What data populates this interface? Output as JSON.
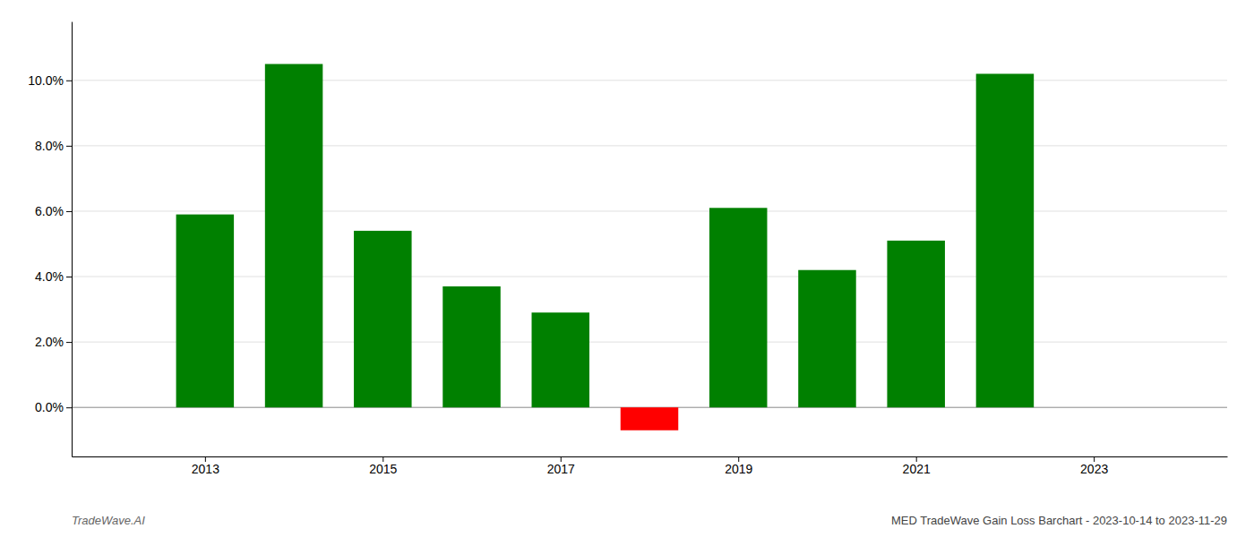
{
  "chart_data": {
    "type": "bar",
    "title": "MED TradeWave Gain Loss Barchart - 2023-10-14 to 2023-11-29",
    "annotations": [
      "TradeWave.AI"
    ],
    "x": [
      2013,
      2014,
      2015,
      2016,
      2017,
      2018,
      2019,
      2020,
      2021,
      2022
    ],
    "values": [
      0.059,
      0.105,
      0.054,
      0.037,
      0.029,
      -0.007,
      0.061,
      0.042,
      0.051,
      0.102
    ],
    "colors": [
      "#008000",
      "#008000",
      "#008000",
      "#008000",
      "#008000",
      "#ff0000",
      "#008000",
      "#008000",
      "#008000",
      "#008000"
    ],
    "xlim": [
      2011.5,
      2024.5
    ],
    "xticks": [
      2013,
      2015,
      2017,
      2019,
      2021,
      2023
    ],
    "ylim": [
      -0.015,
      0.118
    ],
    "yticks": [
      {
        "value": 0.0,
        "label": "0.0%"
      },
      {
        "value": 0.02,
        "label": "2.0%"
      },
      {
        "value": 0.04,
        "label": "4.0%"
      },
      {
        "value": 0.06,
        "label": "6.0%"
      },
      {
        "value": 0.08,
        "label": "8.0%"
      },
      {
        "value": 0.1,
        "label": "10.0%"
      }
    ],
    "grid": true
  }
}
